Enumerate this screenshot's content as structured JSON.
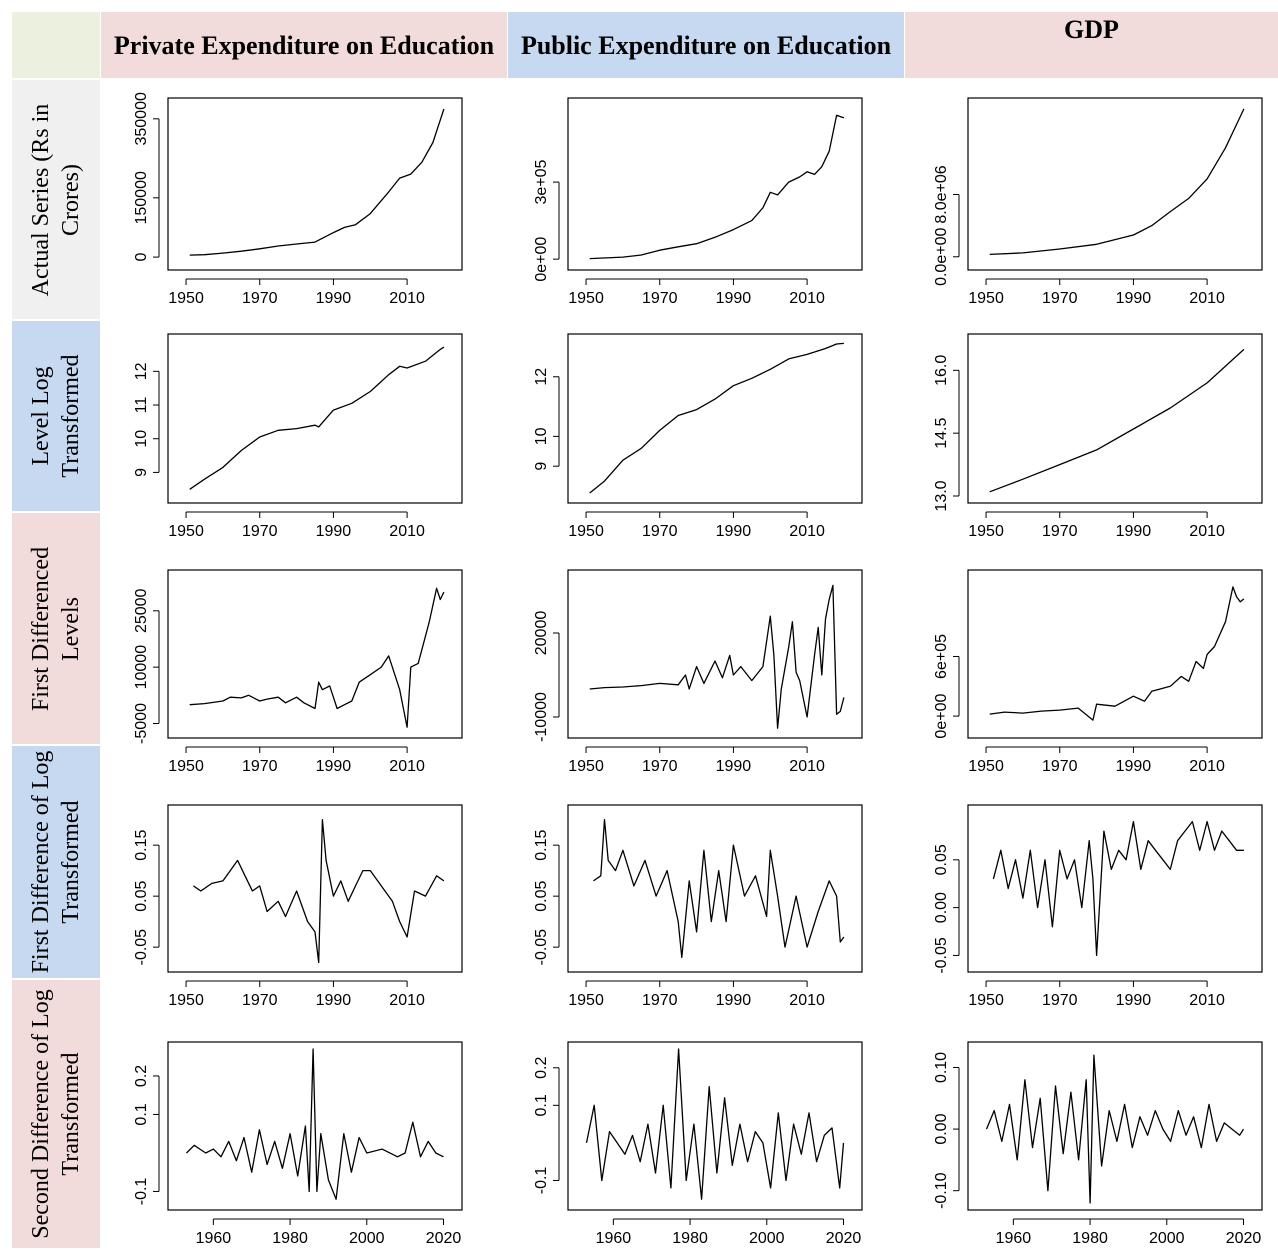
{
  "colors": {
    "pink": "#f2dcdb",
    "blue": "#c6d9f0",
    "grey": "#f0f0f0",
    "green": "#ebf1de",
    "line": "#000000"
  },
  "columns": [
    {
      "key": "private",
      "label": "Private Expenditure on Education",
      "color": "pink"
    },
    {
      "key": "public",
      "label": "Public Expenditure on Education",
      "color": "blue"
    },
    {
      "key": "gdp",
      "label": "GDP",
      "color": "pink"
    }
  ],
  "rows": [
    {
      "key": "actual",
      "label": "Actual Series (Rs in Crores)",
      "color": "grey"
    },
    {
      "key": "level_log",
      "label": "Level Log Transformed",
      "color": "blue"
    },
    {
      "key": "first_diff",
      "label": "First Differenced Levels",
      "color": "pink"
    },
    {
      "key": "first_diff_log",
      "label": "First Difference of Log Transformed",
      "color": "blue"
    },
    {
      "key": "second_diff_log",
      "label": "Second Difference of Log Transformed",
      "color": "pink"
    }
  ],
  "chart_data": [
    {
      "type": "line",
      "row": "actual",
      "column": "private",
      "xticks": [
        "1950",
        "1970",
        "1990",
        "2010"
      ],
      "xlim": [
        1947,
        2023
      ],
      "yticks": [
        "0",
        "150000",
        "350000"
      ],
      "ytick_values": [
        0,
        150000,
        350000
      ],
      "ylim": [
        -15000,
        385000
      ],
      "x": [
        1951,
        1955,
        1960,
        1965,
        1970,
        1975,
        1980,
        1985,
        1990,
        1993,
        1996,
        2000,
        2005,
        2008,
        2011,
        2014,
        2017,
        2020
      ],
      "values": [
        5000,
        6000,
        10000,
        15000,
        21000,
        28000,
        33000,
        38000,
        62000,
        75000,
        82000,
        110000,
        165000,
        200000,
        210000,
        240000,
        290000,
        375000
      ]
    },
    {
      "type": "line",
      "row": "actual",
      "column": "public",
      "xticks": [
        "1950",
        "1970",
        "1990",
        "2010"
      ],
      "xlim": [
        1947,
        2023
      ],
      "yticks": [
        "0e+00",
        "3e+05"
      ],
      "ytick_values": [
        0,
        300000
      ],
      "ylim": [
        -15000,
        600000
      ],
      "x": [
        1951,
        1960,
        1965,
        1970,
        1975,
        1980,
        1985,
        1990,
        1995,
        1998,
        2000,
        2002,
        2005,
        2008,
        2010,
        2012,
        2014,
        2016,
        2018,
        2019,
        2020
      ],
      "values": [
        2000,
        8000,
        16000,
        35000,
        48000,
        60000,
        85000,
        115000,
        150000,
        200000,
        260000,
        250000,
        300000,
        320000,
        340000,
        330000,
        360000,
        420000,
        560000,
        555000,
        550000
      ]
    },
    {
      "type": "line",
      "row": "actual",
      "column": "gdp",
      "xticks": [
        "1950",
        "1970",
        "1990",
        "2010"
      ],
      "xlim": [
        1947,
        2023
      ],
      "yticks": [
        "0.0e+00",
        "8.0e+06"
      ],
      "ytick_values": [
        0,
        8000000
      ],
      "ylim": [
        -800000,
        19500000
      ],
      "x": [
        1951,
        1960,
        1970,
        1980,
        1990,
        1995,
        2000,
        2005,
        2010,
        2015,
        2020
      ],
      "values": [
        300000,
        500000,
        1000000,
        1600000,
        2800000,
        4000000,
        5800000,
        7500000,
        10000000,
        14000000,
        19000000
      ]
    },
    {
      "type": "line",
      "row": "level_log",
      "column": "private",
      "xticks": [
        "1950",
        "1970",
        "1990",
        "2010"
      ],
      "xlim": [
        1947,
        2023
      ],
      "yticks": [
        "9",
        "10",
        "11",
        "12"
      ],
      "ytick_values": [
        9,
        10,
        11,
        12
      ],
      "ylim": [
        8.3,
        12.9
      ],
      "x": [
        1951,
        1955,
        1960,
        1965,
        1970,
        1975,
        1980,
        1985,
        1986,
        1990,
        1995,
        2000,
        2005,
        2008,
        2010,
        2015,
        2019,
        2020
      ],
      "values": [
        8.5,
        8.8,
        9.15,
        9.65,
        10.05,
        10.25,
        10.3,
        10.4,
        10.35,
        10.85,
        11.05,
        11.4,
        11.9,
        12.15,
        12.1,
        12.3,
        12.65,
        12.72
      ]
    },
    {
      "type": "line",
      "row": "level_log",
      "column": "public",
      "xticks": [
        "1950",
        "1970",
        "1990",
        "2010"
      ],
      "xlim": [
        1947,
        2023
      ],
      "yticks": [
        "9",
        "10",
        "12"
      ],
      "ytick_values": [
        9,
        10,
        12
      ],
      "ylim": [
        8.0,
        13.2
      ],
      "x": [
        1951,
        1955,
        1960,
        1965,
        1970,
        1975,
        1980,
        1985,
        1990,
        1995,
        2000,
        2005,
        2010,
        2015,
        2018,
        2020
      ],
      "values": [
        8.1,
        8.5,
        9.2,
        9.6,
        10.2,
        10.7,
        10.9,
        11.25,
        11.7,
        11.95,
        12.25,
        12.6,
        12.75,
        12.95,
        13.1,
        13.12
      ]
    },
    {
      "type": "line",
      "row": "level_log",
      "column": "gdp",
      "xticks": [
        "1950",
        "1970",
        "1990",
        "2010"
      ],
      "xlim": [
        1947,
        2023
      ],
      "yticks": [
        "13.0",
        "14.5",
        "16.0"
      ],
      "ytick_values": [
        13,
        14.5,
        16
      ],
      "ylim": [
        13.0,
        16.7
      ],
      "x": [
        1951,
        1960,
        1970,
        1980,
        1990,
        2000,
        2010,
        2020
      ],
      "values": [
        13.1,
        13.4,
        13.75,
        14.1,
        14.6,
        15.1,
        15.7,
        16.5
      ]
    },
    {
      "type": "line",
      "row": "first_diff",
      "column": "private",
      "xticks": [
        "1950",
        "1970",
        "1990",
        "2010"
      ],
      "xlim": [
        1947,
        2023
      ],
      "yticks": [
        "-5000",
        "10000",
        "25000"
      ],
      "ytick_values": [
        -5000,
        10000,
        25000
      ],
      "ylim": [
        -7000,
        34000
      ],
      "x": [
        1951,
        1955,
        1960,
        1962,
        1965,
        1967,
        1970,
        1972,
        1975,
        1977,
        1980,
        1982,
        1985,
        1986,
        1987,
        1989,
        1990,
        1991,
        1993,
        1995,
        1997,
        2000,
        2003,
        2005,
        2008,
        2010,
        2011,
        2013,
        2016,
        2018,
        2019,
        2020
      ],
      "values": [
        0,
        300,
        1000,
        2000,
        1800,
        2500,
        1000,
        1500,
        2000,
        500,
        2000,
        500,
        -1000,
        6000,
        4000,
        5000,
        2000,
        -1000,
        0,
        1000,
        6000,
        8000,
        10000,
        13000,
        4000,
        -6000,
        10000,
        11000,
        22000,
        31000,
        28000,
        30000
      ]
    },
    {
      "type": "line",
      "row": "first_diff",
      "column": "public",
      "xticks": [
        "1950",
        "1970",
        "1990",
        "2010"
      ],
      "xlim": [
        1947,
        2023
      ],
      "yticks": [
        "-10000",
        "20000"
      ],
      "ytick_values": [
        -10000,
        20000
      ],
      "ylim": [
        -15000,
        40000
      ],
      "x": [
        1951,
        1955,
        1960,
        1965,
        1970,
        1975,
        1977,
        1978,
        1980,
        1982,
        1985,
        1987,
        1989,
        1990,
        1992,
        1995,
        1998,
        2000,
        2001,
        2002,
        2003,
        2005,
        2006,
        2007,
        2008,
        2010,
        2012,
        2013,
        2014,
        2015,
        2016,
        2017,
        2018,
        2019,
        2020
      ],
      "values": [
        0,
        500,
        700,
        1200,
        2000,
        1500,
        5000,
        0,
        8000,
        2000,
        10000,
        4000,
        12000,
        5000,
        8000,
        3000,
        8000,
        26000,
        12000,
        -14000,
        0,
        15000,
        24000,
        6000,
        3000,
        -10000,
        12000,
        22000,
        5000,
        25000,
        32000,
        37000,
        -9000,
        -8000,
        -3000
      ]
    },
    {
      "type": "line",
      "row": "first_diff",
      "column": "gdp",
      "xticks": [
        "1950",
        "1970",
        "1990",
        "2010"
      ],
      "xlim": [
        1947,
        2023
      ],
      "yticks": [
        "0e+00",
        "6e+05"
      ],
      "ytick_values": [
        0,
        600000
      ],
      "ylim": [
        -150000,
        1400000
      ],
      "x": [
        1951,
        1955,
        1960,
        1965,
        1970,
        1975,
        1979,
        1980,
        1985,
        1990,
        1993,
        1995,
        2000,
        2003,
        2005,
        2007,
        2009,
        2010,
        2012,
        2015,
        2017,
        2018,
        2019,
        2020
      ],
      "values": [
        20000,
        40000,
        30000,
        50000,
        60000,
        80000,
        -40000,
        120000,
        100000,
        200000,
        150000,
        250000,
        300000,
        400000,
        350000,
        550000,
        480000,
        620000,
        700000,
        950000,
        1300000,
        1200000,
        1150000,
        1180000
      ]
    },
    {
      "type": "line",
      "row": "first_diff_log",
      "column": "private",
      "xticks": [
        "1950",
        "1970",
        "1990",
        "2010"
      ],
      "xlim": [
        1947,
        2023
      ],
      "yticks": [
        "-0.05",
        "0.05",
        "0.15"
      ],
      "ytick_values": [
        -0.05,
        0.05,
        0.15
      ],
      "ylim": [
        -0.085,
        0.215
      ],
      "x": [
        1952,
        1954,
        1957,
        1960,
        1962,
        1964,
        1966,
        1968,
        1970,
        1972,
        1975,
        1977,
        1980,
        1983,
        1985,
        1986,
        1987,
        1988,
        1990,
        1992,
        1994,
        1996,
        1998,
        2000,
        2003,
        2006,
        2008,
        2010,
        2012,
        2015,
        2018,
        2020
      ],
      "values": [
        0.07,
        0.06,
        0.075,
        0.08,
        0.1,
        0.12,
        0.09,
        0.06,
        0.07,
        0.02,
        0.04,
        0.01,
        0.06,
        0.0,
        -0.02,
        -0.08,
        0.2,
        0.12,
        0.05,
        0.08,
        0.04,
        0.07,
        0.1,
        0.1,
        0.07,
        0.04,
        0.0,
        -0.03,
        0.06,
        0.05,
        0.09,
        0.08
      ]
    },
    {
      "type": "line",
      "row": "first_diff_log",
      "column": "public",
      "xticks": [
        "1950",
        "1970",
        "1990",
        "2010"
      ],
      "xlim": [
        1947,
        2023
      ],
      "yticks": [
        "-0.05",
        "0.05",
        "0.15"
      ],
      "ytick_values": [
        -0.05,
        0.05,
        0.15
      ],
      "ylim": [
        -0.085,
        0.215
      ],
      "x": [
        1952,
        1954,
        1955,
        1956,
        1958,
        1960,
        1963,
        1966,
        1969,
        1972,
        1975,
        1976,
        1978,
        1980,
        1982,
        1984,
        1986,
        1988,
        1990,
        1993,
        1996,
        1999,
        2000,
        2002,
        2004,
        2007,
        2010,
        2013,
        2016,
        2018,
        2019,
        2020
      ],
      "values": [
        0.08,
        0.09,
        0.2,
        0.12,
        0.1,
        0.14,
        0.07,
        0.12,
        0.05,
        0.1,
        0.0,
        -0.07,
        0.08,
        -0.02,
        0.14,
        0.0,
        0.1,
        0.0,
        0.15,
        0.05,
        0.09,
        0.01,
        0.14,
        0.05,
        -0.05,
        0.05,
        -0.05,
        0.02,
        0.08,
        0.05,
        -0.04,
        -0.03
      ]
    },
    {
      "type": "line",
      "row": "first_diff_log",
      "column": "gdp",
      "xticks": [
        "1950",
        "1970",
        "1990",
        "2010"
      ],
      "xlim": [
        1947,
        2023
      ],
      "yticks": [
        "-0.05",
        "0.00",
        "0.05"
      ],
      "ytick_values": [
        -0.05,
        0.0,
        0.05
      ],
      "ylim": [
        -0.06,
        0.1
      ],
      "x": [
        1952,
        1954,
        1956,
        1958,
        1960,
        1962,
        1964,
        1966,
        1968,
        1970,
        1972,
        1974,
        1976,
        1978,
        1979,
        1980,
        1982,
        1984,
        1986,
        1988,
        1990,
        1992,
        1994,
        1996,
        1998,
        2000,
        2002,
        2004,
        2006,
        2008,
        2010,
        2012,
        2014,
        2016,
        2018,
        2020
      ],
      "values": [
        0.03,
        0.06,
        0.02,
        0.05,
        0.01,
        0.06,
        0.0,
        0.05,
        -0.02,
        0.06,
        0.03,
        0.05,
        0.0,
        0.07,
        0.03,
        -0.05,
        0.08,
        0.04,
        0.06,
        0.05,
        0.09,
        0.04,
        0.07,
        0.06,
        0.05,
        0.04,
        0.07,
        0.08,
        0.09,
        0.06,
        0.09,
        0.06,
        0.08,
        0.07,
        0.06,
        0.06
      ]
    },
    {
      "type": "line",
      "row": "second_diff_log",
      "column": "private",
      "xticks": [
        "1960",
        "1980",
        "2000",
        "2020"
      ],
      "xlim": [
        1950,
        2023
      ],
      "yticks": [
        "-0.1",
        "0.1",
        "0.2"
      ],
      "ytick_values": [
        -0.1,
        0.1,
        0.2
      ],
      "ylim": [
        -0.13,
        0.27
      ],
      "x": [
        1953,
        1955,
        1958,
        1960,
        1962,
        1964,
        1966,
        1968,
        1970,
        1972,
        1974,
        1976,
        1978,
        1980,
        1982,
        1984,
        1985,
        1986,
        1987,
        1988,
        1990,
        1992,
        1994,
        1996,
        1998,
        2000,
        2004,
        2008,
        2010,
        2012,
        2014,
        2016,
        2018,
        2020
      ],
      "values": [
        0.0,
        0.02,
        0.0,
        0.01,
        -0.01,
        0.03,
        -0.02,
        0.04,
        -0.05,
        0.06,
        -0.03,
        0.03,
        -0.04,
        0.05,
        -0.06,
        0.07,
        -0.1,
        0.27,
        -0.1,
        0.05,
        -0.07,
        -0.12,
        0.05,
        -0.05,
        0.04,
        0.0,
        0.01,
        -0.01,
        0.0,
        0.08,
        -0.01,
        0.03,
        0.0,
        -0.01
      ]
    },
    {
      "type": "line",
      "row": "second_diff_log",
      "column": "public",
      "xticks": [
        "1960",
        "1980",
        "2000",
        "2020"
      ],
      "xlim": [
        1950,
        2023
      ],
      "yticks": [
        "-0.1",
        "0.1",
        "0.2"
      ],
      "ytick_values": [
        -0.1,
        0.1,
        0.2
      ],
      "ylim": [
        -0.16,
        0.25
      ],
      "x": [
        1953,
        1955,
        1957,
        1959,
        1961,
        1963,
        1965,
        1967,
        1969,
        1971,
        1973,
        1975,
        1977,
        1979,
        1981,
        1983,
        1985,
        1987,
        1989,
        1991,
        1993,
        1995,
        1997,
        1999,
        2001,
        2003,
        2005,
        2007,
        2009,
        2011,
        2013,
        2015,
        2017,
        2019,
        2020
      ],
      "values": [
        0.0,
        0.1,
        -0.1,
        0.03,
        0.0,
        -0.03,
        0.02,
        -0.05,
        0.05,
        -0.08,
        0.1,
        -0.12,
        0.25,
        -0.1,
        0.05,
        -0.15,
        0.15,
        -0.08,
        0.12,
        -0.06,
        0.05,
        -0.05,
        0.03,
        0.0,
        -0.12,
        0.08,
        -0.1,
        0.05,
        -0.03,
        0.08,
        -0.05,
        0.02,
        0.04,
        -0.12,
        0.0
      ]
    },
    {
      "type": "line",
      "row": "second_diff_log",
      "column": "gdp",
      "xticks": [
        "1960",
        "1980",
        "2000",
        "2020"
      ],
      "xlim": [
        1950,
        2023
      ],
      "yticks": [
        "-0.10",
        "0.00",
        "0.10"
      ],
      "ytick_values": [
        -0.1,
        0.0,
        0.1
      ],
      "ylim": [
        -0.12,
        0.13
      ],
      "x": [
        1953,
        1955,
        1957,
        1959,
        1961,
        1963,
        1965,
        1967,
        1969,
        1971,
        1973,
        1975,
        1977,
        1979,
        1980,
        1981,
        1983,
        1985,
        1987,
        1989,
        1991,
        1993,
        1995,
        1997,
        1999,
        2001,
        2003,
        2005,
        2007,
        2009,
        2011,
        2013,
        2015,
        2017,
        2019,
        2020
      ],
      "values": [
        0.0,
        0.03,
        -0.02,
        0.04,
        -0.05,
        0.08,
        -0.03,
        0.05,
        -0.1,
        0.07,
        -0.04,
        0.06,
        -0.05,
        0.08,
        -0.12,
        0.12,
        -0.06,
        0.03,
        -0.02,
        0.04,
        -0.03,
        0.02,
        -0.01,
        0.03,
        0.0,
        -0.02,
        0.03,
        -0.01,
        0.02,
        -0.03,
        0.04,
        -0.02,
        0.01,
        0.0,
        -0.01,
        0.0
      ]
    }
  ]
}
